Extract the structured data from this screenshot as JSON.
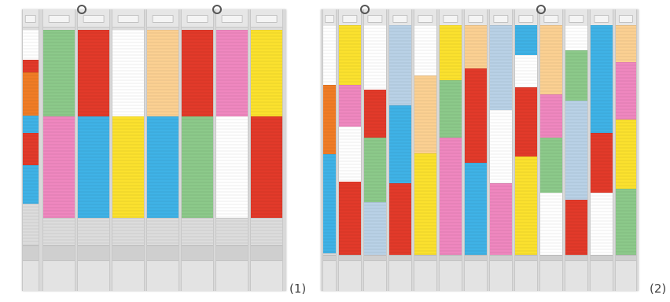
{
  "colors": {
    "white": "#ffffff",
    "red": "#e23a2a",
    "orange": "#f07c25",
    "blue": "#3fb2e6",
    "green": "#8cc98a",
    "pink": "#ef87bf",
    "yellow": "#fbe12e",
    "peach": "#fbd092",
    "lightblue": "#b9d1e6",
    "lightorange": "#fce4a4"
  },
  "panels": [
    {
      "label": "(1)",
      "columns": [
        {
          "segments": [
            [
              "white",
              14
            ],
            [
              "red",
              6
            ],
            [
              "orange",
              20
            ],
            [
              "blue",
              8
            ],
            [
              "red",
              15
            ],
            [
              "blue",
              18
            ],
            [
              "gray",
              19
            ]
          ]
        },
        {
          "segments": [
            [
              "green",
              40
            ],
            [
              "pink",
              47
            ],
            [
              "gray",
              13
            ]
          ]
        },
        {
          "segments": [
            [
              "red",
              40
            ],
            [
              "blue",
              47
            ],
            [
              "gray",
              13
            ]
          ]
        },
        {
          "segments": [
            [
              "white",
              40
            ],
            [
              "yellow",
              47
            ],
            [
              "gray",
              13
            ]
          ]
        },
        {
          "segments": [
            [
              "peach",
              40
            ],
            [
              "blue",
              47
            ],
            [
              "gray",
              13
            ]
          ]
        },
        {
          "segments": [
            [
              "red",
              40
            ],
            [
              "green",
              47
            ],
            [
              "gray",
              13
            ]
          ]
        },
        {
          "segments": [
            [
              "pink",
              40
            ],
            [
              "white",
              47
            ],
            [
              "gray",
              13
            ]
          ]
        },
        {
          "segments": [
            [
              "yellow",
              40
            ],
            [
              "red",
              47
            ],
            [
              "gray",
              13
            ]
          ]
        }
      ]
    },
    {
      "label": "(2)",
      "columns": [
        {
          "segments": [
            [
              "white",
              26
            ],
            [
              "orange",
              30
            ],
            [
              "blue",
              43
            ],
            [
              "gray",
              1
            ]
          ]
        },
        {
          "segments": [
            [
              "yellow",
              26
            ],
            [
              "pink",
              18
            ],
            [
              "white",
              24
            ],
            [
              "red",
              32
            ]
          ]
        },
        {
          "segments": [
            [
              "white",
              28
            ],
            [
              "red",
              21
            ],
            [
              "green",
              28
            ],
            [
              "lightblue",
              23
            ]
          ]
        },
        {
          "segments": [
            [
              "lightblue",
              35
            ],
            [
              "blue",
              34
            ],
            [
              "red",
              31
            ]
          ]
        },
        {
          "segments": [
            [
              "white",
              22
            ],
            [
              "peach",
              34
            ],
            [
              "yellow",
              44
            ]
          ]
        },
        {
          "segments": [
            [
              "yellow",
              24
            ],
            [
              "green",
              25
            ],
            [
              "pink",
              51
            ]
          ]
        },
        {
          "segments": [
            [
              "peach",
              19
            ],
            [
              "red",
              41
            ],
            [
              "blue",
              40
            ]
          ]
        },
        {
          "segments": [
            [
              "lightblue",
              37
            ],
            [
              "white",
              32
            ],
            [
              "pink",
              31
            ]
          ]
        },
        {
          "segments": [
            [
              "blue",
              13
            ],
            [
              "white",
              14
            ],
            [
              "red",
              30
            ],
            [
              "yellow",
              43
            ]
          ]
        },
        {
          "segments": [
            [
              "peach",
              30
            ],
            [
              "pink",
              19
            ],
            [
              "green",
              24
            ],
            [
              "white",
              27
            ]
          ]
        },
        {
          "segments": [
            [
              "white",
              11
            ],
            [
              "green",
              22
            ],
            [
              "lightblue",
              43
            ],
            [
              "red",
              24
            ]
          ]
        },
        {
          "segments": [
            [
              "blue",
              47
            ],
            [
              "red",
              26
            ],
            [
              "white",
              27
            ]
          ]
        },
        {
          "segments": [
            [
              "peach",
              16
            ],
            [
              "pink",
              25
            ],
            [
              "yellow",
              30
            ],
            [
              "green",
              29
            ]
          ]
        }
      ]
    }
  ]
}
